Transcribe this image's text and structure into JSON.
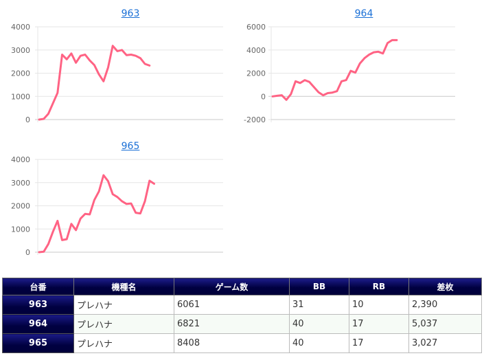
{
  "colors": {
    "line": "#ff6384",
    "grid": "#e6e6e6",
    "axis": "#c8c8c8",
    "title_link": "#1a6fd6",
    "header_bg": "#000040"
  },
  "chart_data": [
    {
      "type": "line",
      "title": "963",
      "ylim": [
        0,
        4000
      ],
      "yticks": [
        "4000",
        "3000",
        "2000",
        "1000",
        "0"
      ],
      "tick_values": [
        4000,
        3000,
        2000,
        1000,
        0
      ],
      "series": [
        {
          "values": [
            0,
            30,
            250,
            700,
            1150,
            2800,
            2600,
            2850,
            2450,
            2750,
            2800,
            2550,
            2350,
            1950,
            1650,
            2250,
            3180,
            2950,
            3000,
            2780,
            2800,
            2750,
            2650,
            2400,
            2330
          ]
        }
      ]
    },
    {
      "type": "line",
      "title": "964",
      "ylim": [
        -2000,
        6000
      ],
      "yticks": [
        "6000",
        "4000",
        "2000",
        "0",
        "-2000"
      ],
      "tick_values": [
        6000,
        4000,
        2000,
        0,
        -2000
      ],
      "series": [
        {
          "values": [
            0,
            50,
            100,
            -300,
            200,
            1300,
            1150,
            1400,
            1250,
            800,
            350,
            100,
            280,
            330,
            450,
            1300,
            1400,
            2200,
            2050,
            2850,
            3300,
            3600,
            3800,
            3850,
            3700,
            4600,
            4850,
            4850
          ]
        }
      ]
    },
    {
      "type": "line",
      "title": "965",
      "ylim": [
        0,
        4000
      ],
      "yticks": [
        "4000",
        "3000",
        "2000",
        "1000",
        "0"
      ],
      "tick_values": [
        4000,
        3000,
        2000,
        1000,
        0
      ],
      "series": [
        {
          "values": [
            0,
            20,
            350,
            880,
            1350,
            520,
            560,
            1220,
            950,
            1450,
            1650,
            1630,
            2250,
            2620,
            3320,
            3060,
            2500,
            2380,
            2200,
            2080,
            2100,
            1700,
            1670,
            2200,
            3080,
            2950
          ]
        }
      ]
    }
  ],
  "table": {
    "headers": [
      "台番",
      "機種名",
      "ゲーム数",
      "BB",
      "RB",
      "差枚"
    ],
    "rows": [
      [
        "963",
        "プレハナ",
        "6061",
        "31",
        "10",
        "2,390"
      ],
      [
        "964",
        "プレハナ",
        "6821",
        "40",
        "17",
        "5,037"
      ],
      [
        "965",
        "プレハナ",
        "8408",
        "40",
        "17",
        "3,027"
      ]
    ]
  }
}
